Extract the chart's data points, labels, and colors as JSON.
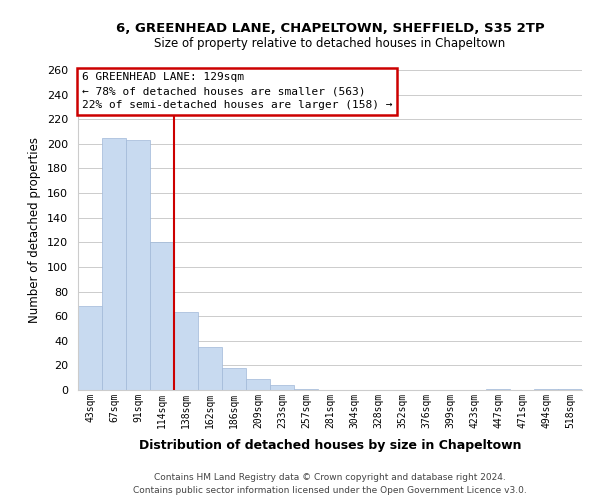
{
  "title1": "6, GREENHEAD LANE, CHAPELTOWN, SHEFFIELD, S35 2TP",
  "title2": "Size of property relative to detached houses in Chapeltown",
  "xlabel": "Distribution of detached houses by size in Chapeltown",
  "ylabel": "Number of detached properties",
  "bin_labels": [
    "43sqm",
    "67sqm",
    "91sqm",
    "114sqm",
    "138sqm",
    "162sqm",
    "186sqm",
    "209sqm",
    "233sqm",
    "257sqm",
    "281sqm",
    "304sqm",
    "328sqm",
    "352sqm",
    "376sqm",
    "399sqm",
    "423sqm",
    "447sqm",
    "471sqm",
    "494sqm",
    "518sqm"
  ],
  "bar_heights": [
    68,
    205,
    203,
    120,
    63,
    35,
    18,
    9,
    4,
    1,
    0,
    0,
    0,
    0,
    0,
    0,
    0,
    1,
    0,
    1,
    1
  ],
  "bar_color": "#c8daf0",
  "bar_edge_color": "#a0b8d8",
  "property_line_label": "6 GREENHEAD LANE: 129sqm",
  "annotation_line1": "← 78% of detached houses are smaller (563)",
  "annotation_line2": "22% of semi-detached houses are larger (158) →",
  "annotation_box_color": "#ffffff",
  "annotation_box_edge_color": "#cc0000",
  "vline_color": "#cc0000",
  "vline_x": 4,
  "ylim": [
    0,
    260
  ],
  "yticks": [
    0,
    20,
    40,
    60,
    80,
    100,
    120,
    140,
    160,
    180,
    200,
    220,
    240,
    260
  ],
  "footer1": "Contains HM Land Registry data © Crown copyright and database right 2024.",
  "footer2": "Contains public sector information licensed under the Open Government Licence v3.0.",
  "grid_color": "#cccccc",
  "bg_color": "#ffffff"
}
